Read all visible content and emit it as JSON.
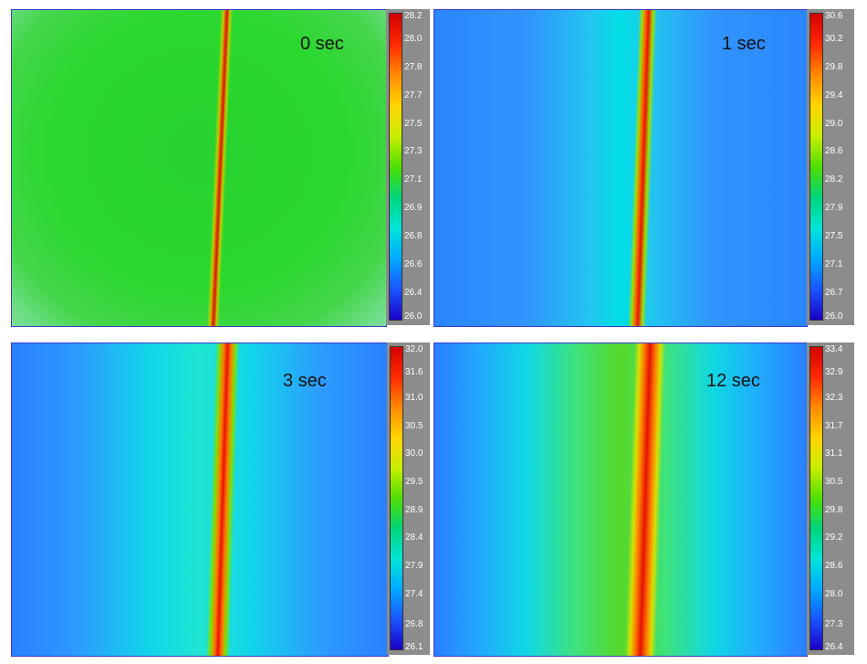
{
  "panels": [
    {
      "time_label": "0 sec",
      "ticks": [
        "28.2",
        "28.0",
        "27.8",
        "27.7",
        "27.5",
        "27.3",
        "27.1",
        "26.9",
        "26.8",
        "26.6",
        "26.4",
        "26.0"
      ]
    },
    {
      "time_label": "1 sec",
      "ticks": [
        "30.6",
        "30.2",
        "29.8",
        "29.4",
        "29.0",
        "28.6",
        "28.2",
        "27.9",
        "27.5",
        "27.1",
        "26.7",
        "26.0"
      ]
    },
    {
      "time_label": "3 sec",
      "ticks": [
        "32.0",
        "31.6",
        "31.0",
        "30.5",
        "30.0",
        "29.5",
        "28.9",
        "28.4",
        "27.9",
        "27.4",
        "26.8",
        "26.1"
      ]
    },
    {
      "time_label": "12 sec",
      "ticks": [
        "33.4",
        "32.9",
        "32.3",
        "31.7",
        "31.1",
        "30.5",
        "29.8",
        "29.2",
        "28.6",
        "28.0",
        "27.3",
        "26.4"
      ]
    }
  ],
  "colors": {
    "hot": "#ff1a00",
    "warm": "#39d400",
    "cool": "#00d8e8",
    "cold": "#1e7dff",
    "scale_background": "#8c8c8c"
  }
}
